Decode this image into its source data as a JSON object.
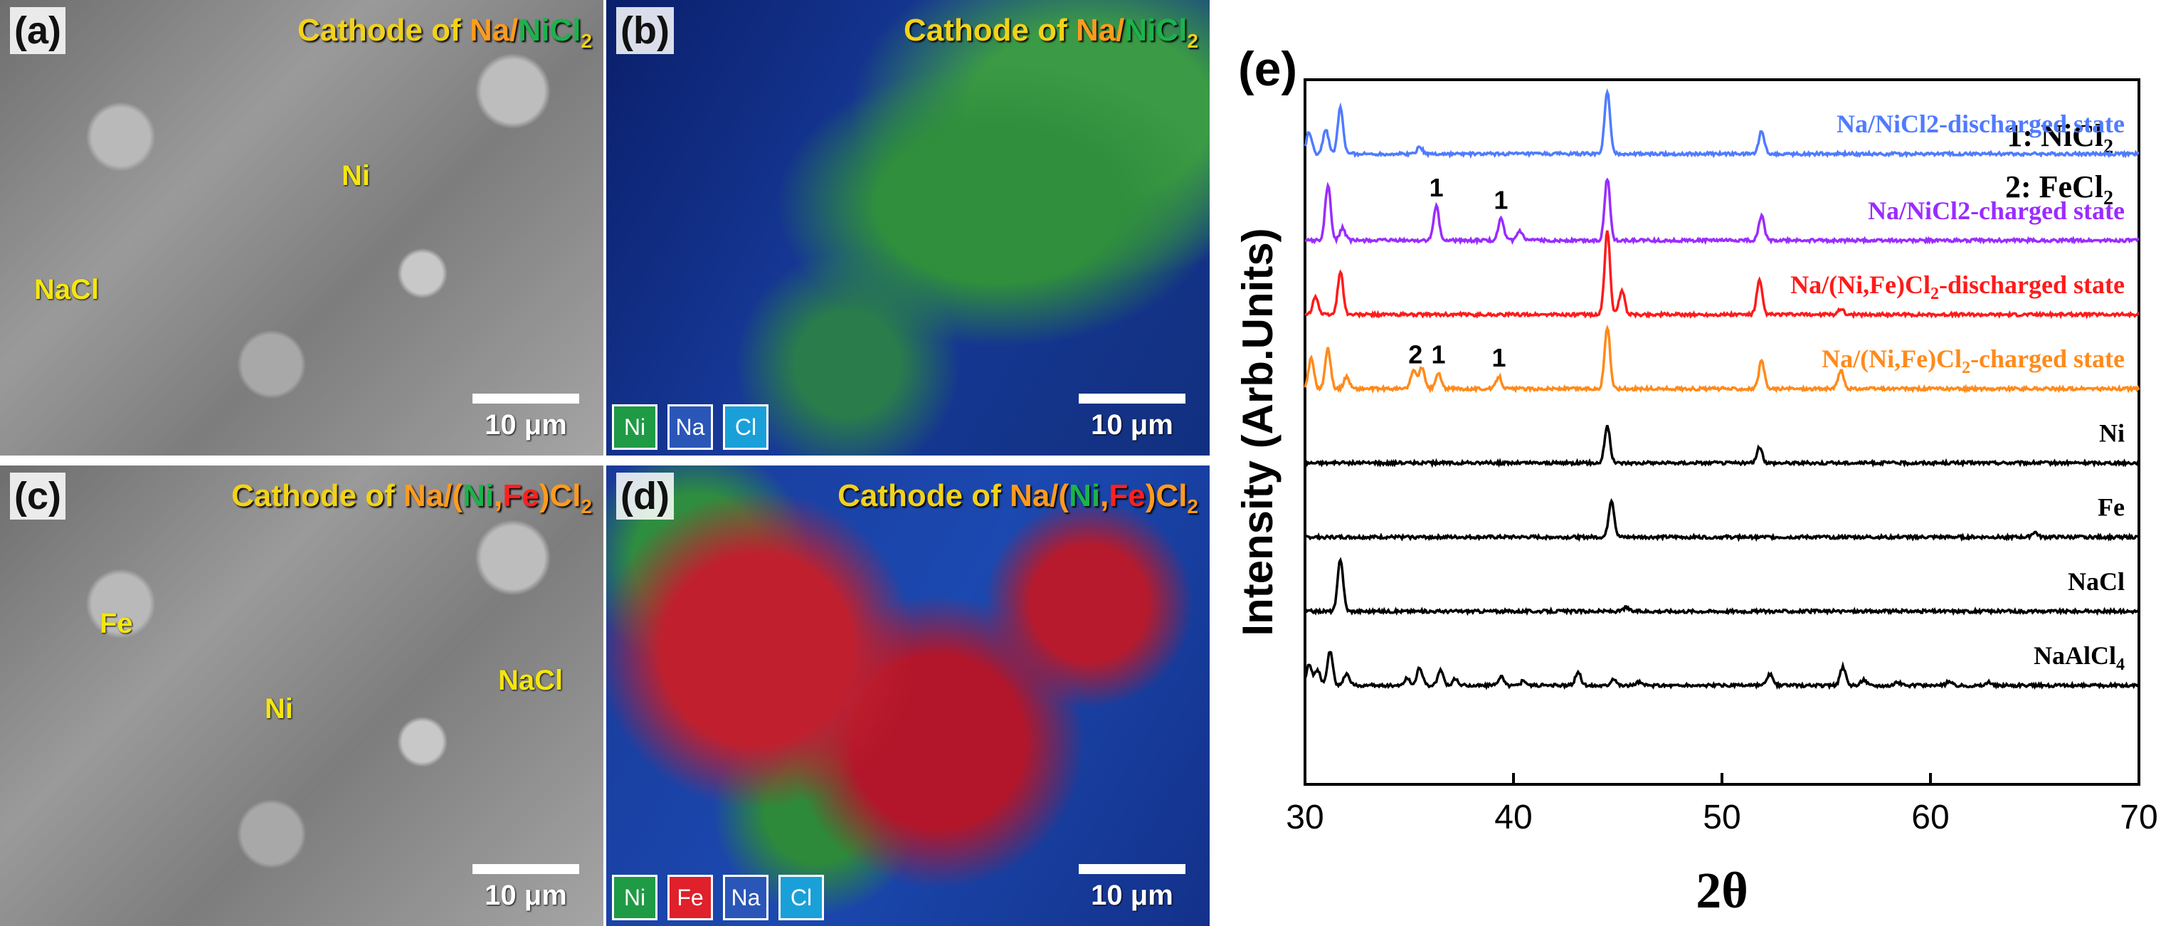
{
  "panels": {
    "a": {
      "label": "(a)",
      "title_prefix": "Cathode of ",
      "title_na": "Na/",
      "title_ni": "NiCl",
      "title_sub": "2",
      "anno1": "Ni",
      "anno2": "NaCl",
      "scale": "10 μm"
    },
    "b": {
      "label": "(b)",
      "title_prefix": "Cathode of ",
      "title_na": "Na/",
      "title_ni": "NiCl",
      "title_sub": "2",
      "scale": "10 μm",
      "legend": [
        "Ni",
        "Na",
        "Cl"
      ]
    },
    "c": {
      "label": "(c)",
      "title_prefix": "Cathode of ",
      "title_na": "Na/(",
      "title_ni": "Ni",
      "title_comma": ",",
      "title_fe": "Fe",
      "title_end": ")Cl",
      "title_sub": "2",
      "anno1": "Fe",
      "anno2": "Ni",
      "anno3": "NaCl",
      "scale": "10 μm"
    },
    "d": {
      "label": "(d)",
      "title_prefix": "Cathode of ",
      "title_na": "Na/(",
      "title_ni": "Ni",
      "title_comma": ",",
      "title_fe": "Fe",
      "title_end": ")Cl",
      "title_sub": "2",
      "scale": "10 μm",
      "legend": [
        "Ni",
        "Fe",
        "Na",
        "Cl"
      ]
    }
  },
  "colors": {
    "ni_chip": "#1f9a45",
    "fe_chip": "#e0202a",
    "na_chip": "#2a56b8",
    "cl_chip": "#1aa0d8"
  },
  "chart_data": {
    "type": "line",
    "panel_label": "(e)",
    "title": "",
    "xlabel": "2θ",
    "ylabel": "Intensity (Arb.Units)",
    "xlim": [
      30,
      70
    ],
    "xticks": [
      30,
      40,
      50,
      60,
      70
    ],
    "yticks": [],
    "legend_notes": [
      {
        "num": "1: NiCl",
        "sub": "2"
      },
      {
        "num": "2: FeCl",
        "sub": "2"
      }
    ],
    "series": [
      {
        "name": "Na/NiCl2-discharged state",
        "color": "#4f7bff",
        "label_parts": [
          "Na/NiCl2-discharged state"
        ],
        "baseline": 10.2,
        "peaks": [
          [
            30.2,
            0.35
          ],
          [
            31.0,
            0.4
          ],
          [
            31.7,
            0.75
          ],
          [
            35.5,
            0.12
          ],
          [
            44.5,
            1.0
          ],
          [
            51.9,
            0.38
          ]
        ],
        "peak_labels": []
      },
      {
        "name": "Na/NiCl2-charged state",
        "color": "#9a2cff",
        "label_parts": [
          "Na/NiCl2-charged state"
        ],
        "baseline": 8.8,
        "peaks": [
          [
            31.1,
            0.9
          ],
          [
            31.8,
            0.2
          ],
          [
            36.3,
            0.55
          ],
          [
            39.4,
            0.35
          ],
          [
            40.3,
            0.15
          ],
          [
            44.5,
            1.0
          ],
          [
            51.9,
            0.4
          ]
        ],
        "peak_labels": [
          {
            "x": 36.3,
            "text": "1"
          },
          {
            "x": 39.4,
            "text": "1"
          }
        ]
      },
      {
        "name": "Na/(Ni,Fe)Cl2-discharged state",
        "color": "#ff1a1a",
        "label_parts": [
          "Na/(Ni,Fe)Cl",
          "2",
          "-discharged state"
        ],
        "baseline": 7.6,
        "peaks": [
          [
            30.5,
            0.3
          ],
          [
            31.7,
            0.7
          ],
          [
            44.5,
            1.35
          ],
          [
            45.2,
            0.4
          ],
          [
            51.8,
            0.55
          ],
          [
            55.7,
            0.1
          ]
        ],
        "peak_labels": []
      },
      {
        "name": "Na/(Ni,Fe)Cl2-charged state",
        "color": "#ff8a1a",
        "label_parts": [
          "Na/(Ni,Fe)Cl",
          "2",
          "-charged state"
        ],
        "baseline": 6.4,
        "peaks": [
          [
            30.3,
            0.5
          ],
          [
            31.1,
            0.65
          ],
          [
            32.0,
            0.2
          ],
          [
            35.2,
            0.3
          ],
          [
            35.6,
            0.35
          ],
          [
            36.4,
            0.25
          ],
          [
            39.3,
            0.2
          ],
          [
            44.5,
            1.0
          ],
          [
            51.9,
            0.45
          ],
          [
            55.7,
            0.3
          ]
        ],
        "peak_labels": [
          {
            "x": 35.3,
            "text": "2"
          },
          {
            "x": 36.4,
            "text": "1"
          },
          {
            "x": 39.3,
            "text": "1"
          }
        ]
      },
      {
        "name": "Ni",
        "color": "#000000",
        "label_parts": [
          "Ni"
        ],
        "baseline": 5.2,
        "peaks": [
          [
            44.5,
            0.6
          ],
          [
            51.8,
            0.25
          ]
        ],
        "peak_labels": []
      },
      {
        "name": "Fe",
        "color": "#000000",
        "label_parts": [
          "Fe"
        ],
        "baseline": 4.0,
        "peaks": [
          [
            44.7,
            0.6
          ],
          [
            65.0,
            0.08
          ]
        ],
        "peak_labels": []
      },
      {
        "name": "NaCl",
        "color": "#000000",
        "label_parts": [
          "NaCl"
        ],
        "baseline": 2.8,
        "peaks": [
          [
            31.7,
            0.85
          ],
          [
            45.4,
            0.06
          ]
        ],
        "peak_labels": []
      },
      {
        "name": "NaAlCl4",
        "color": "#000000",
        "label_parts": [
          "NaAlCl",
          "4"
        ],
        "baseline": 1.6,
        "peaks": [
          [
            30.2,
            0.35
          ],
          [
            30.6,
            0.25
          ],
          [
            31.2,
            0.55
          ],
          [
            32.0,
            0.2
          ],
          [
            34.9,
            0.12
          ],
          [
            35.5,
            0.3
          ],
          [
            36.5,
            0.25
          ],
          [
            37.2,
            0.1
          ],
          [
            39.4,
            0.15
          ],
          [
            40.5,
            0.08
          ],
          [
            43.1,
            0.22
          ],
          [
            44.8,
            0.12
          ],
          [
            46.0,
            0.06
          ],
          [
            52.3,
            0.18
          ],
          [
            55.8,
            0.3
          ],
          [
            56.8,
            0.1
          ],
          [
            58.4,
            0.06
          ],
          [
            60.9,
            0.06
          ],
          [
            62.8,
            0.05
          ]
        ],
        "peak_labels": []
      }
    ]
  }
}
